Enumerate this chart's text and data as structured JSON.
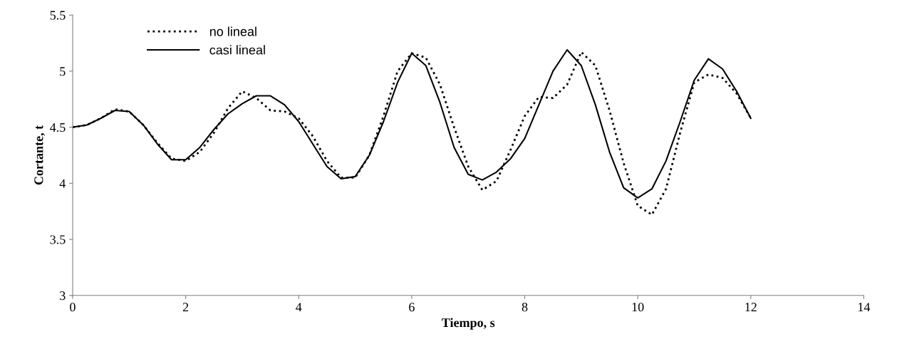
{
  "chart_data": {
    "type": "line",
    "xlabel": "Tiempo, s",
    "ylabel": "Cortante, t",
    "xlim": [
      0,
      14
    ],
    "xticks": [
      0,
      2,
      4,
      6,
      8,
      10,
      12,
      14
    ],
    "ylim": [
      3,
      5.5
    ],
    "yticks": [
      3,
      3.5,
      4,
      4.5,
      5,
      5.5
    ],
    "grid": false,
    "legend": "top left",
    "marker": "none",
    "x": [
      0,
      0.25,
      0.5,
      0.75,
      1.0,
      1.25,
      1.5,
      1.75,
      2.0,
      2.25,
      2.5,
      2.75,
      3.0,
      3.25,
      3.5,
      3.75,
      4.0,
      4.25,
      4.5,
      4.75,
      5.0,
      5.25,
      5.5,
      5.75,
      6.0,
      6.25,
      6.5,
      6.75,
      7.0,
      7.25,
      7.5,
      7.75,
      8.0,
      8.25,
      8.5,
      8.75,
      9.0,
      9.25,
      9.5,
      9.75,
      10.0,
      10.25,
      10.5,
      10.75,
      11.0,
      11.25,
      11.5,
      11.75,
      12.0
    ],
    "series": [
      {
        "name": "no lineal",
        "color": "#000000",
        "line_style": "dotted",
        "values": [
          4.5,
          4.52,
          4.58,
          4.66,
          4.64,
          4.52,
          4.36,
          4.22,
          4.2,
          4.28,
          4.45,
          4.67,
          4.82,
          4.76,
          4.65,
          4.64,
          4.58,
          4.42,
          4.2,
          4.05,
          4.05,
          4.25,
          4.6,
          5.0,
          5.16,
          5.12,
          4.88,
          4.5,
          4.15,
          3.94,
          4.02,
          4.3,
          4.6,
          4.77,
          4.76,
          4.88,
          5.17,
          5.05,
          4.65,
          4.18,
          3.8,
          3.72,
          3.95,
          4.45,
          4.9,
          4.97,
          4.94,
          4.8,
          4.58
        ]
      },
      {
        "name": "casi lineal",
        "color": "#000000",
        "line_style": "solid",
        "values": [
          4.5,
          4.52,
          4.58,
          4.65,
          4.64,
          4.52,
          4.35,
          4.21,
          4.21,
          4.32,
          4.48,
          4.62,
          4.71,
          4.78,
          4.78,
          4.7,
          4.55,
          4.35,
          4.15,
          4.04,
          4.06,
          4.25,
          4.55,
          4.9,
          5.16,
          5.05,
          4.72,
          4.32,
          4.08,
          4.03,
          4.1,
          4.22,
          4.4,
          4.7,
          5.0,
          5.19,
          5.05,
          4.7,
          4.28,
          3.96,
          3.87,
          3.95,
          4.2,
          4.55,
          4.92,
          5.11,
          5.02,
          4.82,
          4.58
        ]
      }
    ]
  }
}
